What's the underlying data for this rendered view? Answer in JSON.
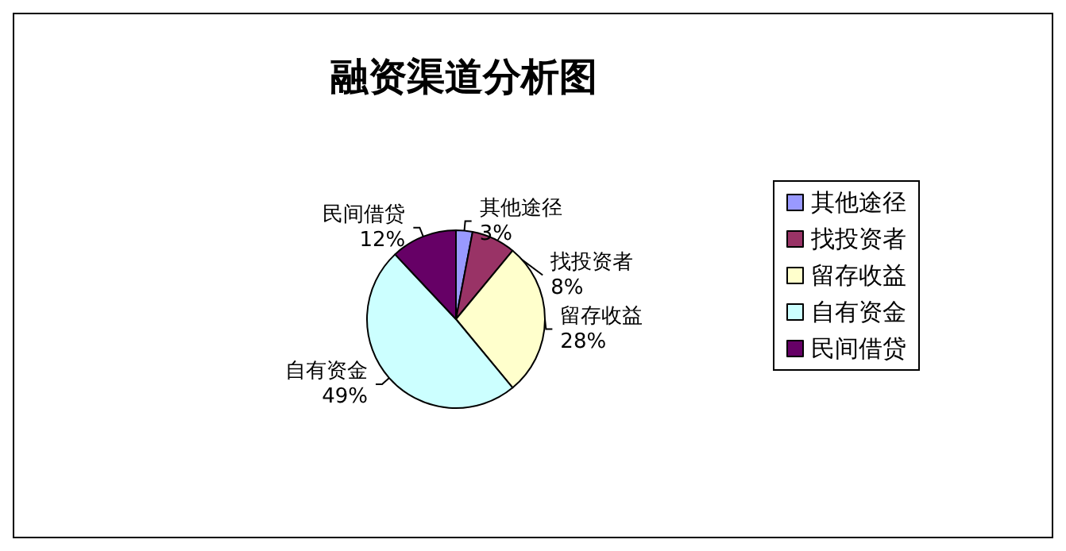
{
  "chart_data": {
    "type": "pie",
    "title": "融资渠道分析图",
    "categories": [
      "其他途径",
      "找投资者",
      "留存收益",
      "自有资金",
      "民间借贷"
    ],
    "values": [
      3,
      8,
      28,
      49,
      12
    ],
    "value_labels": [
      "3%",
      "8%",
      "28%",
      "49%",
      "12%"
    ],
    "colors": [
      "#9999ff",
      "#993366",
      "#ffffcc",
      "#ccffff",
      "#660066"
    ],
    "legend": "right"
  }
}
